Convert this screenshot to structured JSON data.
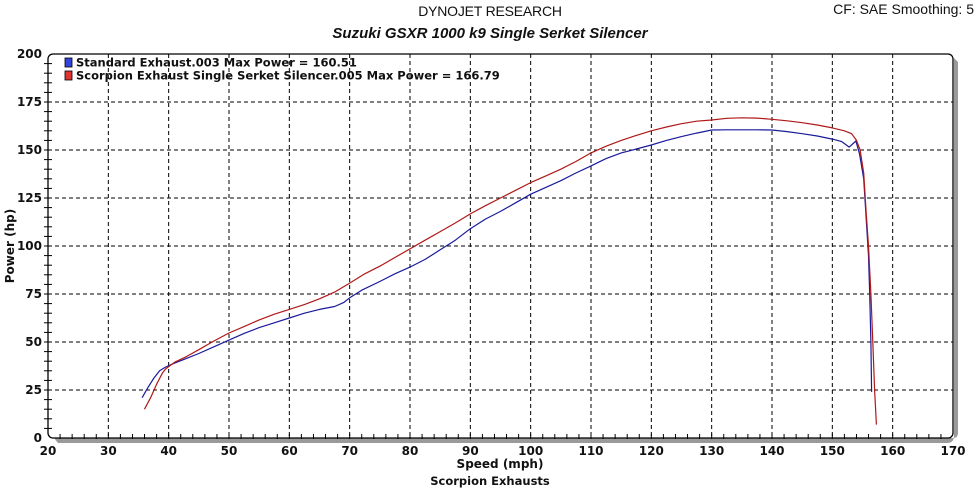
{
  "header": {
    "company": "DYNOJET RESEARCH",
    "settings": "CF: SAE  Smoothing: 5"
  },
  "footer": {
    "label": "Scorpion Exhausts"
  },
  "chart_data": {
    "type": "line",
    "title": "Suzuki GSXR 1000 k9 Single Serket Silencer",
    "xlabel": "Speed (mph)",
    "ylabel": "Power (hp)",
    "xlim": [
      20,
      170
    ],
    "ylim": [
      0,
      200
    ],
    "x_ticks": [
      20,
      30,
      40,
      50,
      60,
      70,
      80,
      90,
      100,
      110,
      120,
      130,
      140,
      150,
      160,
      170
    ],
    "y_ticks": [
      0,
      25,
      50,
      75,
      100,
      125,
      150,
      175,
      200
    ],
    "grid": true,
    "grid_style": "dashed",
    "legend_position": "top-left inside",
    "series": [
      {
        "name": "Standard Exhaust.003 Max Power = 160.51",
        "color": "#1a1a9c",
        "legend_color": "#3344dd",
        "points": [
          [
            35.6,
            21
          ],
          [
            36.5,
            26
          ],
          [
            37.5,
            31
          ],
          [
            38.5,
            35
          ],
          [
            39.5,
            37
          ],
          [
            41,
            39
          ],
          [
            43,
            41.5
          ],
          [
            45,
            44
          ],
          [
            47.5,
            47.5
          ],
          [
            50,
            51
          ],
          [
            52.5,
            54.5
          ],
          [
            55,
            57.5
          ],
          [
            57.5,
            60
          ],
          [
            60,
            62.5
          ],
          [
            62.5,
            65
          ],
          [
            65,
            67
          ],
          [
            67.5,
            68.5
          ],
          [
            69,
            70.5
          ],
          [
            70,
            73
          ],
          [
            72,
            77
          ],
          [
            75,
            81.5
          ],
          [
            77.5,
            85.5
          ],
          [
            80,
            89
          ],
          [
            82.5,
            93
          ],
          [
            85,
            98
          ],
          [
            87.5,
            103
          ],
          [
            90,
            109
          ],
          [
            92.5,
            114
          ],
          [
            95,
            118
          ],
          [
            97.5,
            122.5
          ],
          [
            100,
            127
          ],
          [
            102.5,
            130.5
          ],
          [
            105,
            134
          ],
          [
            107.5,
            138
          ],
          [
            110,
            141.7
          ],
          [
            112.5,
            145.5
          ],
          [
            115,
            148.5
          ],
          [
            117.5,
            150.5
          ],
          [
            120,
            152.6
          ],
          [
            122.5,
            155
          ],
          [
            125,
            157
          ],
          [
            127.5,
            158.8
          ],
          [
            130,
            160.4
          ],
          [
            132.5,
            160.5
          ],
          [
            135,
            160.5
          ],
          [
            137.5,
            160.5
          ],
          [
            140,
            160.4
          ],
          [
            142.5,
            159.6
          ],
          [
            145,
            158.5
          ],
          [
            147.5,
            157.3
          ],
          [
            150,
            155.7
          ],
          [
            151.5,
            154.5
          ],
          [
            152.8,
            151.5
          ],
          [
            153.9,
            154.7
          ],
          [
            154.5,
            148
          ],
          [
            155.2,
            135
          ],
          [
            155.6,
            115
          ],
          [
            156,
            95
          ],
          [
            156.2,
            75
          ],
          [
            156.4,
            50
          ],
          [
            156.5,
            24
          ]
        ]
      },
      {
        "name": "Scorpion Exhaust Single Serket Silencer.005 Max Power = 166.79",
        "color": "#b01818",
        "legend_color": "#e03333",
        "points": [
          [
            36,
            15
          ],
          [
            37,
            21
          ],
          [
            38,
            28
          ],
          [
            39,
            34
          ],
          [
            39.5,
            36
          ],
          [
            41,
            39.5
          ],
          [
            43,
            42.5
          ],
          [
            45,
            46
          ],
          [
            47.5,
            50.5
          ],
          [
            50,
            54.7
          ],
          [
            52.5,
            58
          ],
          [
            55,
            61.5
          ],
          [
            57.5,
            64.5
          ],
          [
            60,
            67
          ],
          [
            62.5,
            69.5
          ],
          [
            65,
            72.5
          ],
          [
            67.5,
            76
          ],
          [
            70,
            80.7
          ],
          [
            72.5,
            85.5
          ],
          [
            75,
            89.5
          ],
          [
            77.5,
            94
          ],
          [
            80,
            98.5
          ],
          [
            82.5,
            103
          ],
          [
            85,
            107.5
          ],
          [
            87.5,
            112
          ],
          [
            90,
            116.7
          ],
          [
            92.5,
            121
          ],
          [
            95,
            125
          ],
          [
            97.5,
            129
          ],
          [
            100,
            133
          ],
          [
            102.5,
            136.5
          ],
          [
            105,
            140
          ],
          [
            107.5,
            144
          ],
          [
            110,
            148.5
          ],
          [
            112.5,
            152
          ],
          [
            115,
            155
          ],
          [
            117.5,
            157.6
          ],
          [
            120,
            160
          ],
          [
            122.5,
            162
          ],
          [
            125,
            163.7
          ],
          [
            127.5,
            165
          ],
          [
            130,
            165.6
          ],
          [
            132.5,
            166.5
          ],
          [
            135,
            166.79
          ],
          [
            137.5,
            166.6
          ],
          [
            140,
            166
          ],
          [
            142.5,
            165.2
          ],
          [
            145,
            164.2
          ],
          [
            147.5,
            163
          ],
          [
            150,
            161.5
          ],
          [
            152,
            160
          ],
          [
            153.2,
            158.5
          ],
          [
            154,
            155
          ],
          [
            154.6,
            150
          ],
          [
            155.2,
            138
          ],
          [
            155.6,
            118
          ],
          [
            156,
            100
          ],
          [
            156.4,
            75
          ],
          [
            156.7,
            50
          ],
          [
            157,
            25
          ],
          [
            157.3,
            7
          ]
        ]
      }
    ]
  }
}
